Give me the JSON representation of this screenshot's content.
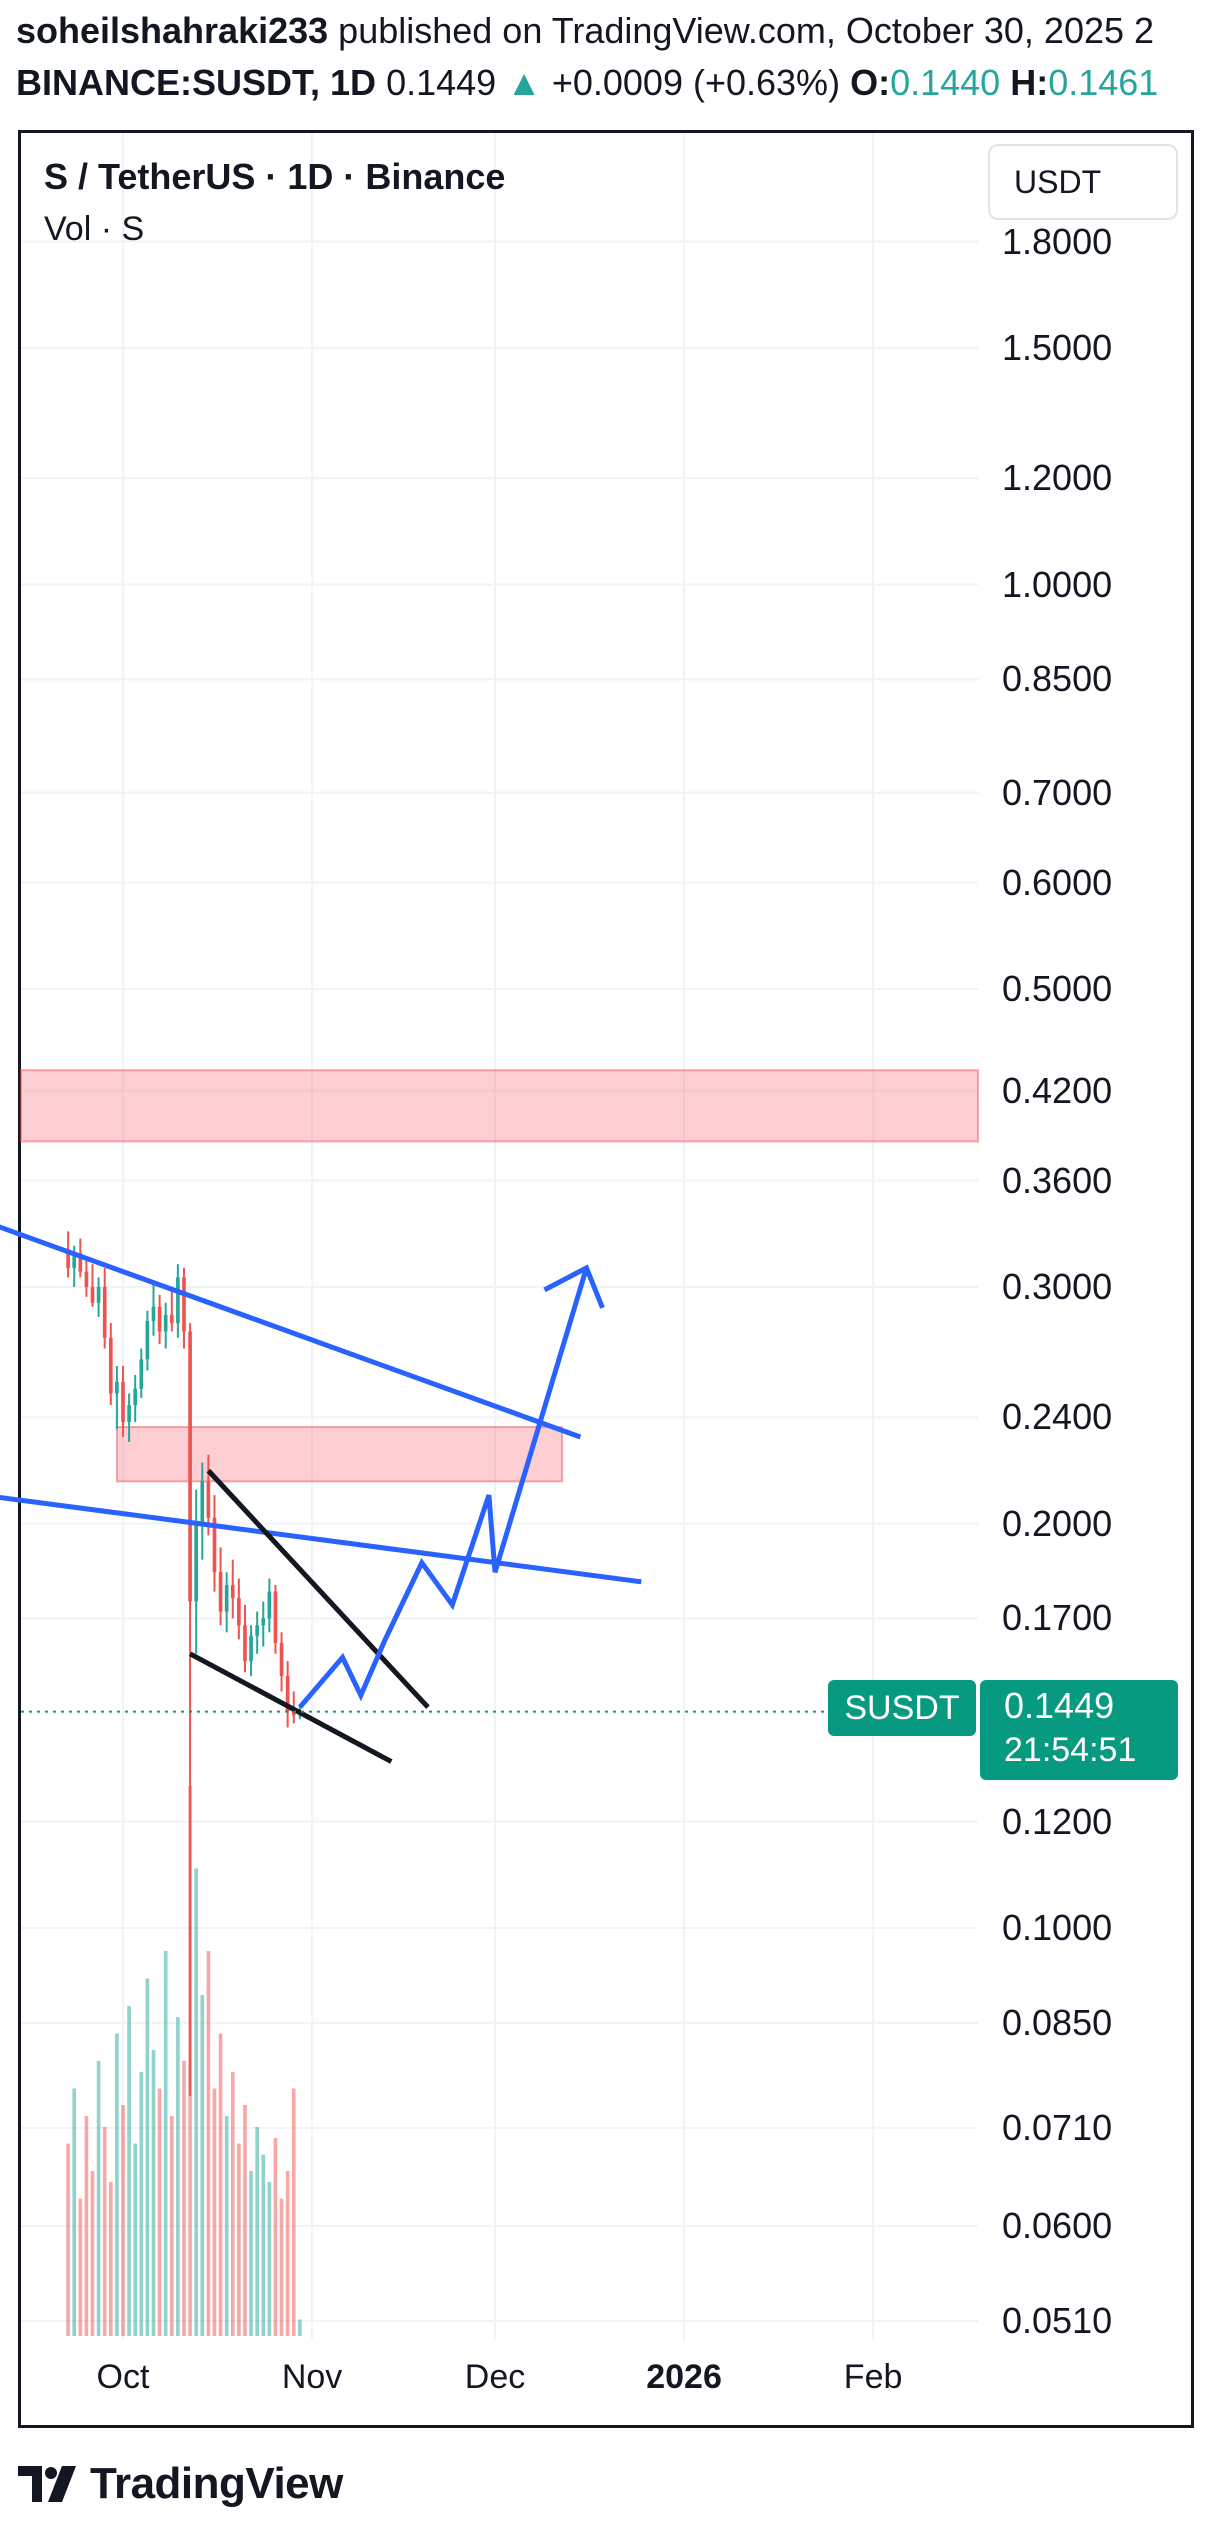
{
  "header": {
    "author": "soheilshahraki233",
    "published_text": " published on TradingView.com, October 30, 2025 2",
    "symbol": "BINANCE:SUSDT, 1D",
    "last": "0.1449",
    "change": "+0.0009 (+0.63%)",
    "open_label": "O:",
    "open_value": "0.1440",
    "high_label": "H:",
    "high_value": "0.1461"
  },
  "legend": {
    "title": "S / TetherUS · 1D · Binance",
    "volume": "Vol · S"
  },
  "currency_button": "USDT",
  "price_axis": [
    "1.8000",
    "1.5000",
    "1.2000",
    "1.0000",
    "0.8500",
    "0.7000",
    "0.6000",
    "0.5000",
    "0.4200",
    "0.3600",
    "0.3000",
    "0.2400",
    "0.2000",
    "0.1700",
    "0.1200",
    "0.1000",
    "0.0850",
    "0.0710",
    "0.0600",
    "0.0510"
  ],
  "time_axis": [
    "Oct",
    "Nov",
    "Dec",
    "2026",
    "Feb"
  ],
  "last_price_tag": {
    "symbol": "SUSDT",
    "price": "0.1449",
    "countdown": "21:54:51"
  },
  "footer": {
    "brand": "TradingView"
  },
  "colors": {
    "up": "#26a69a",
    "down": "#ef5350",
    "drawing_line": "#2962ff",
    "zone": "#f7525f",
    "price_tag": "#089981"
  },
  "chart_data": {
    "type": "candlestick",
    "symbol": "BINANCE:SUSDT",
    "interval": "1D",
    "y_scale": "log",
    "x_range": [
      "2025-09-22",
      "2026-02-25"
    ],
    "y_range": [
      0.048,
      1.9
    ],
    "last_price": 0.1449,
    "open": 0.144,
    "high": 0.1461,
    "candles": [
      {
        "t": "2025-09-22",
        "o": 0.32,
        "h": 0.33,
        "l": 0.305,
        "c": 0.31
      },
      {
        "t": "2025-09-23",
        "o": 0.31,
        "h": 0.322,
        "l": 0.3,
        "c": 0.318
      },
      {
        "t": "2025-09-24",
        "o": 0.318,
        "h": 0.326,
        "l": 0.305,
        "c": 0.308
      },
      {
        "t": "2025-09-25",
        "o": 0.308,
        "h": 0.316,
        "l": 0.295,
        "c": 0.3
      },
      {
        "t": "2025-09-26",
        "o": 0.3,
        "h": 0.312,
        "l": 0.29,
        "c": 0.292
      },
      {
        "t": "2025-09-27",
        "o": 0.292,
        "h": 0.305,
        "l": 0.285,
        "c": 0.3
      },
      {
        "t": "2025-09-28",
        "o": 0.3,
        "h": 0.31,
        "l": 0.27,
        "c": 0.275
      },
      {
        "t": "2025-09-29",
        "o": 0.275,
        "h": 0.282,
        "l": 0.245,
        "c": 0.25
      },
      {
        "t": "2025-09-30",
        "o": 0.25,
        "h": 0.262,
        "l": 0.235,
        "c": 0.255
      },
      {
        "t": "2025-10-01",
        "o": 0.255,
        "h": 0.262,
        "l": 0.232,
        "c": 0.238
      },
      {
        "t": "2025-10-02",
        "o": 0.238,
        "h": 0.25,
        "l": 0.23,
        "c": 0.245
      },
      {
        "t": "2025-10-03",
        "o": 0.245,
        "h": 0.258,
        "l": 0.238,
        "c": 0.252
      },
      {
        "t": "2025-10-04",
        "o": 0.252,
        "h": 0.27,
        "l": 0.248,
        "c": 0.265
      },
      {
        "t": "2025-10-05",
        "o": 0.265,
        "h": 0.288,
        "l": 0.26,
        "c": 0.283
      },
      {
        "t": "2025-10-06",
        "o": 0.283,
        "h": 0.302,
        "l": 0.276,
        "c": 0.29
      },
      {
        "t": "2025-10-07",
        "o": 0.29,
        "h": 0.296,
        "l": 0.272,
        "c": 0.278
      },
      {
        "t": "2025-10-08",
        "o": 0.278,
        "h": 0.292,
        "l": 0.27,
        "c": 0.286
      },
      {
        "t": "2025-10-09",
        "o": 0.286,
        "h": 0.298,
        "l": 0.278,
        "c": 0.282
      },
      {
        "t": "2025-10-10",
        "o": 0.282,
        "h": 0.312,
        "l": 0.275,
        "c": 0.305
      },
      {
        "t": "2025-10-11",
        "o": 0.305,
        "h": 0.31,
        "l": 0.27,
        "c": 0.278
      },
      {
        "t": "2025-10-12",
        "o": 0.278,
        "h": 0.282,
        "l": 0.075,
        "c": 0.175
      },
      {
        "t": "2025-10-13",
        "o": 0.175,
        "h": 0.212,
        "l": 0.16,
        "c": 0.2
      },
      {
        "t": "2025-10-14",
        "o": 0.2,
        "h": 0.222,
        "l": 0.188,
        "c": 0.215
      },
      {
        "t": "2025-10-15",
        "o": 0.215,
        "h": 0.225,
        "l": 0.196,
        "c": 0.202
      },
      {
        "t": "2025-10-16",
        "o": 0.202,
        "h": 0.21,
        "l": 0.178,
        "c": 0.184
      },
      {
        "t": "2025-10-17",
        "o": 0.184,
        "h": 0.192,
        "l": 0.168,
        "c": 0.172
      },
      {
        "t": "2025-10-18",
        "o": 0.172,
        "h": 0.184,
        "l": 0.166,
        "c": 0.18
      },
      {
        "t": "2025-10-19",
        "o": 0.18,
        "h": 0.188,
        "l": 0.17,
        "c": 0.176
      },
      {
        "t": "2025-10-20",
        "o": 0.176,
        "h": 0.182,
        "l": 0.164,
        "c": 0.168
      },
      {
        "t": "2025-10-21",
        "o": 0.168,
        "h": 0.174,
        "l": 0.155,
        "c": 0.158
      },
      {
        "t": "2025-10-22",
        "o": 0.158,
        "h": 0.168,
        "l": 0.154,
        "c": 0.165
      },
      {
        "t": "2025-10-23",
        "o": 0.165,
        "h": 0.172,
        "l": 0.16,
        "c": 0.168
      },
      {
        "t": "2025-10-24",
        "o": 0.168,
        "h": 0.175,
        "l": 0.162,
        "c": 0.17
      },
      {
        "t": "2025-10-25",
        "o": 0.17,
        "h": 0.182,
        "l": 0.166,
        "c": 0.178
      },
      {
        "t": "2025-10-26",
        "o": 0.178,
        "h": 0.18,
        "l": 0.16,
        "c": 0.163
      },
      {
        "t": "2025-10-27",
        "o": 0.163,
        "h": 0.166,
        "l": 0.15,
        "c": 0.154
      },
      {
        "t": "2025-10-28",
        "o": 0.154,
        "h": 0.158,
        "l": 0.141,
        "c": 0.145
      },
      {
        "t": "2025-10-29",
        "o": 0.145,
        "h": 0.15,
        "l": 0.142,
        "c": 0.144
      },
      {
        "t": "2025-10-30",
        "o": 0.144,
        "h": 0.1461,
        "l": 0.143,
        "c": 0.1449
      }
    ],
    "volume_relative": [
      0.35,
      0.45,
      0.25,
      0.4,
      0.3,
      0.5,
      0.38,
      0.28,
      0.55,
      0.42,
      0.6,
      0.35,
      0.48,
      0.65,
      0.52,
      0.45,
      0.7,
      0.4,
      0.58,
      0.5,
      1.0,
      0.85,
      0.62,
      0.7,
      0.45,
      0.55,
      0.4,
      0.48,
      0.35,
      0.42,
      0.3,
      0.38,
      0.33,
      0.28,
      0.36,
      0.25,
      0.3,
      0.45,
      0.03
    ],
    "drawings": [
      {
        "kind": "zone",
        "color": "#f7525f",
        "from": "2025-09-01",
        "to": "2026-02-25",
        "low": 0.385,
        "high": 0.435
      },
      {
        "kind": "zone",
        "color": "#f7525f",
        "from": "2025-09-30",
        "to": "2025-12-12",
        "low": 0.215,
        "high": 0.236
      },
      {
        "kind": "trend_line",
        "color": "#2962ff",
        "points": [
          [
            "2025-09-01",
            0.345
          ],
          [
            "2025-12-15",
            0.232
          ]
        ]
      },
      {
        "kind": "trend_line",
        "color": "#2962ff",
        "points": [
          [
            "2025-09-01",
            0.212
          ],
          [
            "2025-12-25",
            0.181
          ]
        ]
      },
      {
        "kind": "trend_line",
        "color": "#131722",
        "points": [
          [
            "2025-10-15",
            0.219
          ],
          [
            "2025-11-20",
            0.146
          ]
        ]
      },
      {
        "kind": "trend_line",
        "color": "#131722",
        "points": [
          [
            "2025-10-12",
            0.16
          ],
          [
            "2025-11-14",
            0.133
          ]
        ]
      },
      {
        "kind": "path",
        "color": "#2962ff",
        "points": [
          [
            "2025-10-30",
            0.146
          ],
          [
            "2025-11-06",
            0.159
          ],
          [
            "2025-11-09",
            0.149
          ],
          [
            "2025-11-13",
            0.164
          ],
          [
            "2025-11-19",
            0.187
          ],
          [
            "2025-11-24",
            0.174
          ],
          [
            "2025-11-30",
            0.21
          ],
          [
            "2025-12-01",
            0.184
          ],
          [
            "2025-12-16",
            0.31
          ]
        ]
      }
    ],
    "grid": true
  }
}
